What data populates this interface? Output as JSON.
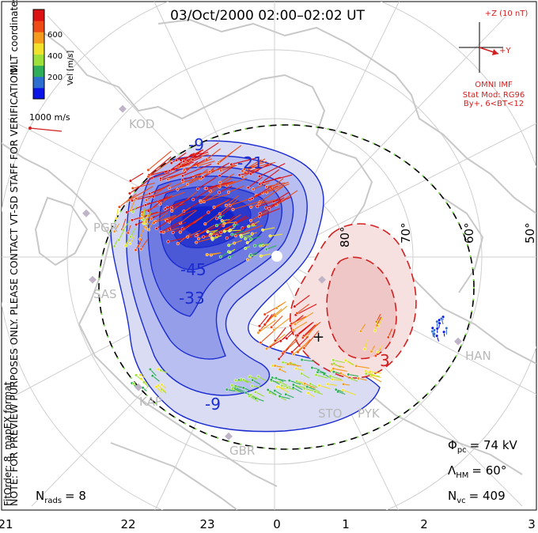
{
  "title": "03/Oct/2000 02:00–02:02 UT",
  "coords_label": "MLT coordinates",
  "colorbar": {
    "label": "Vel [m/s]",
    "ticks": [
      "600",
      "400",
      "200"
    ],
    "colors": [
      "#0a14e6",
      "#2d6fd0",
      "#2fae5a",
      "#9ee03a",
      "#f2e12a",
      "#f59a1c",
      "#ee4a16",
      "#dd1111"
    ]
  },
  "scale_vector": {
    "label": "1000 m/s"
  },
  "imf": {
    "z_label": "+Z (10 nT)",
    "y_label": "+Y",
    "source": "OMNI IMF",
    "stat_mod": "Stat Mod: RG96",
    "condition": "By+, 6<BT<12"
  },
  "notice": "NOTE: FOR PREVIEW PURPOSES ONLY. PLEASE CONTACT VT-SD STAFF FOR VERIFICATION.",
  "fit_info": "FitOrder: 8, mapEX format",
  "lat_labels": [
    "80°",
    "70°",
    "60°",
    "50°"
  ],
  "mlt_labels": [
    "21",
    "22",
    "23",
    "0",
    "1",
    "2",
    "3"
  ],
  "station_labels": [
    "KOD",
    "PGR",
    "SAS",
    "KAP",
    "GBR",
    "STO",
    "PYK",
    "HAN"
  ],
  "contour_labels": [
    "-9",
    "-21",
    "-45",
    "-33",
    "-9",
    "3"
  ],
  "stats": {
    "phi_pc_symbol": "Φ",
    "phi_pc_sub": "pc",
    "phi_pc_value": "= 74 kV",
    "lambda_symbol": "Λ",
    "lambda_sub": "HM",
    "lambda_value": "= 60°",
    "nvc_symbol": "N",
    "nvc_sub": "vc",
    "nvc_value": "= 409",
    "nrads_symbol": "N",
    "nrads_sub": "rads",
    "nrads_value": "= 8"
  }
}
